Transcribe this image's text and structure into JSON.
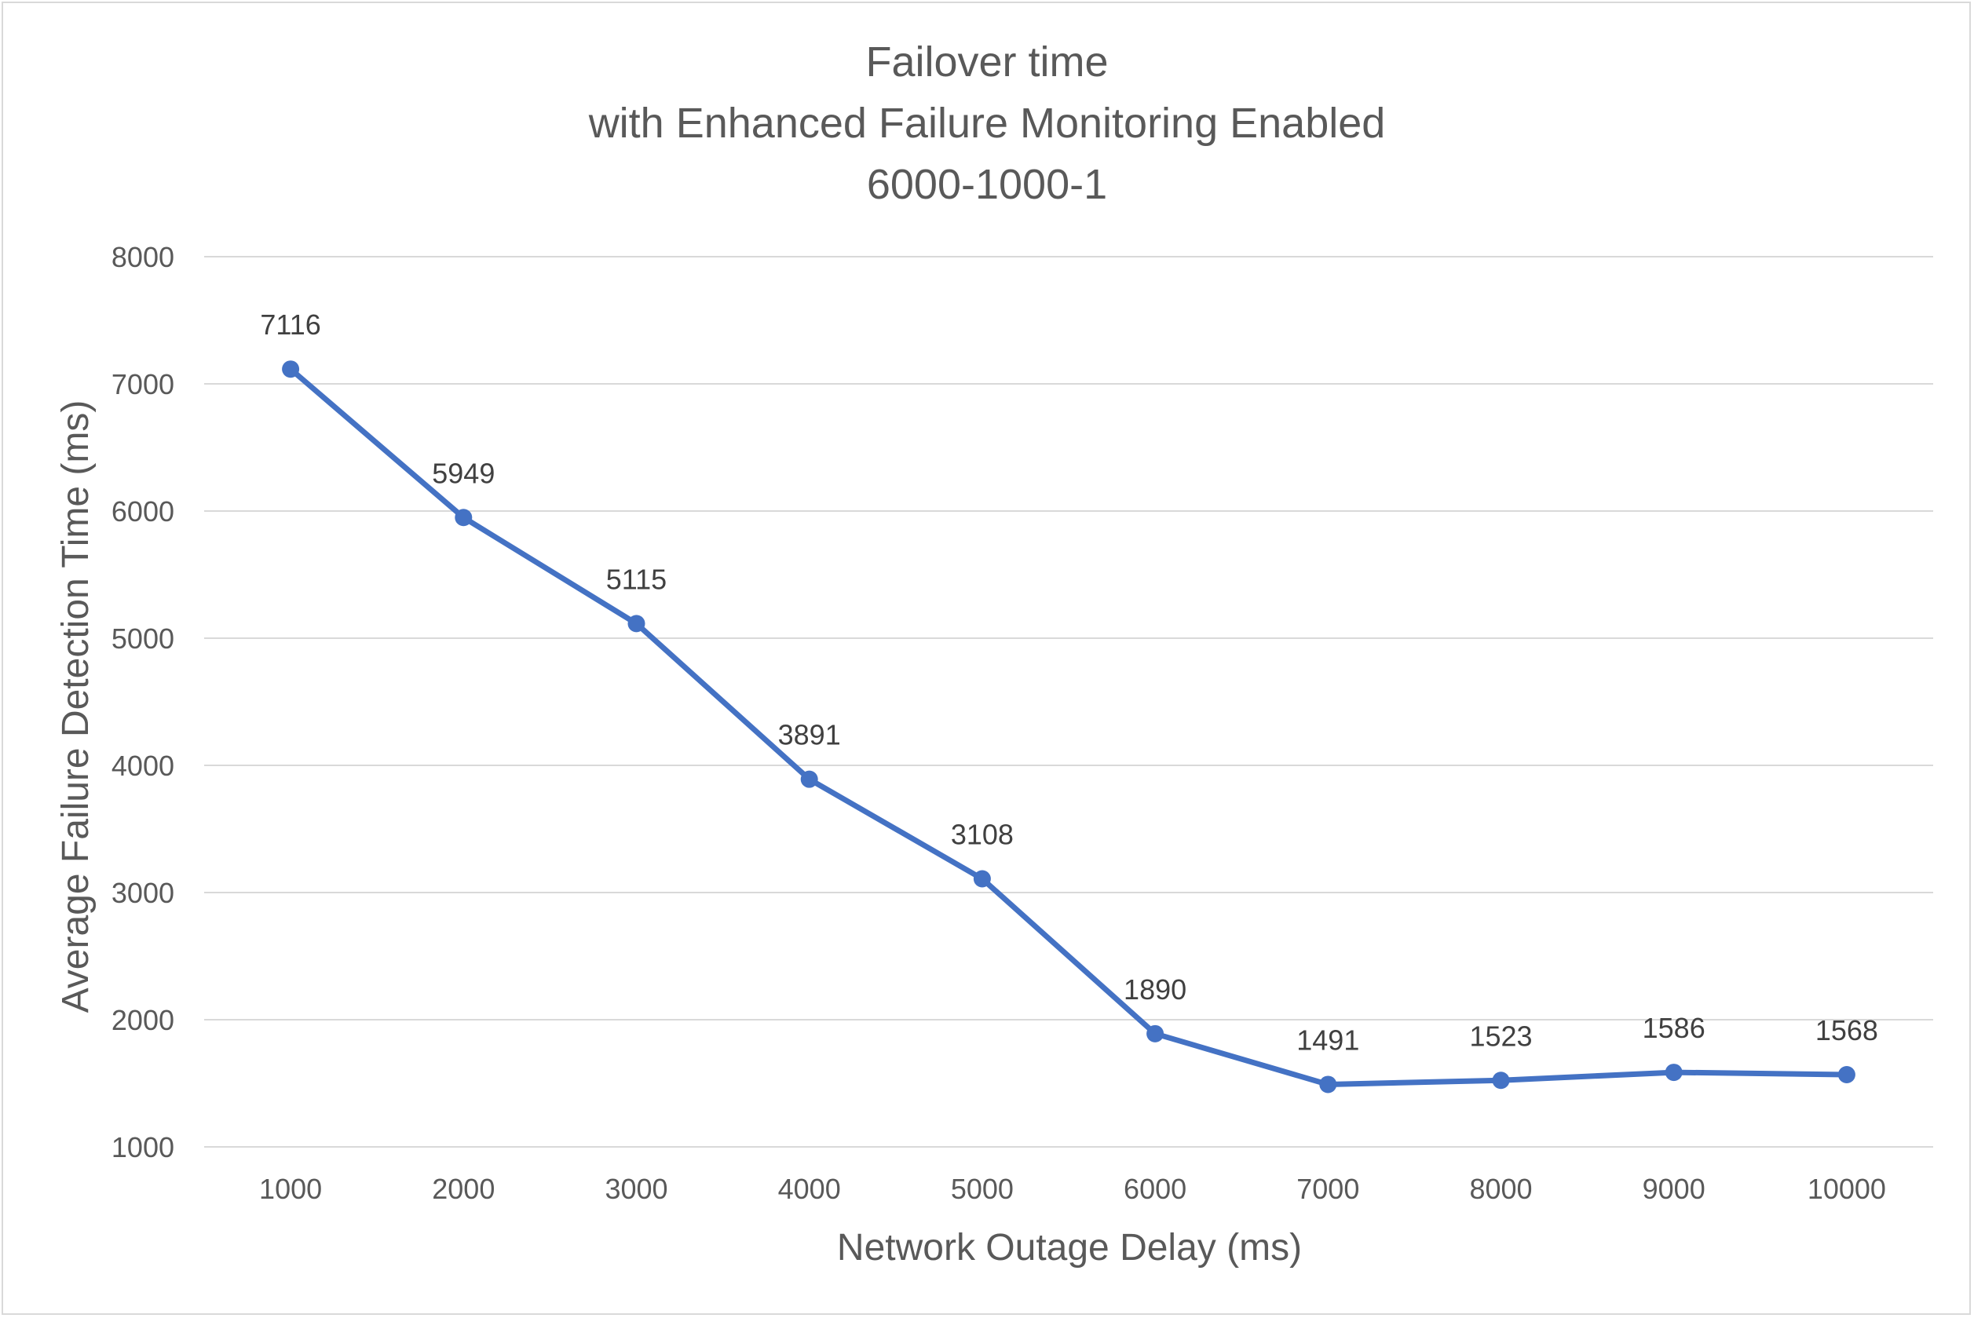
{
  "chart_data": {
    "type": "line",
    "title_lines": [
      "Failover time",
      "with Enhanced Failure Monitoring Enabled",
      "6000-1000-1"
    ],
    "xlabel": "Network Outage Delay (ms)",
    "ylabel": "Average Failure Detection Time (ms)",
    "categories": [
      "1000",
      "2000",
      "3000",
      "4000",
      "5000",
      "6000",
      "7000",
      "8000",
      "9000",
      "10000"
    ],
    "values": [
      7116,
      5949,
      5115,
      3891,
      3108,
      1890,
      1491,
      1523,
      1586,
      1568
    ],
    "data_labels": [
      "7116",
      "5949",
      "5115",
      "3891",
      "3108",
      "1890",
      "1491",
      "1523",
      "1586",
      "1568"
    ],
    "ylim": [
      1000,
      8000
    ],
    "yticks": [
      "1000",
      "2000",
      "3000",
      "4000",
      "5000",
      "6000",
      "7000",
      "8000"
    ],
    "grid": "horizontal",
    "legend": "none",
    "colors": {
      "series": "#4472c4",
      "grid": "#d9d9d9",
      "text": "#595959",
      "data_label": "#404040"
    }
  }
}
